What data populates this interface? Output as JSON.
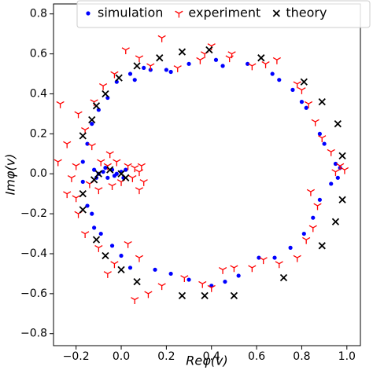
{
  "chart_data": {
    "type": "scatter",
    "x_label": "Reφ(v)",
    "y_label": "Imφ(v)",
    "xlim": [
      -0.3,
      1.06
    ],
    "ylim": [
      -0.86,
      0.85
    ],
    "xticks": [
      {
        "value": -0.2,
        "label": "−0.2"
      },
      {
        "value": 0,
        "label": "0.0"
      },
      0.2,
      0.4,
      0.6,
      0.8,
      {
        "value": 1,
        "label": "1.0"
      }
    ],
    "yticks": [
      {
        "value": -0.8,
        "label": "−0.8"
      },
      {
        "value": -0.6,
        "label": "−0.6"
      },
      {
        "value": -0.4,
        "label": "−0.4"
      },
      {
        "value": -0.2,
        "label": "−0.2"
      },
      {
        "value": 0,
        "label": "0.0"
      },
      0.2,
      0.4,
      0.6,
      0.8
    ],
    "legend": "upper right",
    "series": [
      {
        "name": "simulation",
        "color": "#0000ff",
        "marker": "o",
        "x": [
          -0.02,
          0.04,
          0.06,
          0.1,
          0.13,
          0.2,
          0.22,
          0.3,
          0.42,
          0.45,
          0.56,
          0.67,
          0.7,
          0.76,
          0.8,
          0.82,
          0.88,
          0.9,
          0.95,
          0.97,
          0.96,
          0.93,
          0.88,
          0.85,
          0.81,
          0.75,
          0.68,
          0.61,
          0.52,
          0.46,
          0.4,
          0.3,
          0.22,
          0.15,
          0.04,
          0.0,
          -0.04,
          -0.09,
          -0.12,
          -0.13,
          -0.15,
          -0.17,
          -0.17,
          -0.15,
          -0.13,
          -0.1,
          -0.06,
          -0.12,
          -0.1,
          -0.08,
          -0.06,
          -0.04,
          -0.02,
          0.0,
          0.01,
          -0.11,
          -0.07,
          -0.03,
          0.02
        ],
        "values": [
          0.46,
          0.5,
          0.47,
          0.53,
          0.52,
          0.52,
          0.51,
          0.55,
          0.57,
          0.54,
          0.55,
          0.5,
          0.47,
          0.42,
          0.36,
          0.33,
          0.2,
          0.15,
          0.05,
          0.03,
          -0.02,
          -0.05,
          -0.13,
          -0.22,
          -0.3,
          -0.37,
          -0.42,
          -0.42,
          -0.51,
          -0.54,
          -0.56,
          -0.53,
          -0.5,
          -0.48,
          -0.47,
          -0.41,
          -0.36,
          -0.3,
          -0.27,
          -0.2,
          -0.16,
          -0.04,
          0.06,
          0.15,
          0.25,
          0.32,
          0.38,
          0.02,
          0.0,
          0.01,
          -0.02,
          0.02,
          0.0,
          0.01,
          -0.02,
          -0.02,
          0.03,
          -0.01,
          0.02
        ]
      },
      {
        "name": "experiment",
        "color": "#ff0000",
        "marker": "1",
        "x": [
          0.18,
          0.02,
          0.08,
          0.13,
          0.25,
          0.35,
          0.37,
          0.4,
          0.48,
          0.49,
          0.58,
          0.64,
          0.69,
          0.78,
          0.8,
          0.83,
          0.86,
          0.89,
          0.93,
          0.97,
          0.99,
          0.95,
          0.84,
          0.87,
          0.85,
          0.82,
          0.78,
          0.7,
          0.63,
          0.58,
          0.5,
          0.45,
          0.4,
          0.36,
          0.28,
          0.18,
          0.12,
          0.06,
          0.08,
          0.03,
          -0.03,
          -0.06,
          -0.1,
          -0.16,
          -0.19,
          -0.2,
          -0.24,
          -0.22,
          -0.2,
          -0.28,
          -0.24,
          -0.27,
          -0.19,
          -0.16,
          -0.12,
          -0.08,
          -0.03,
          -0.13,
          -0.05,
          -0.02,
          0.03,
          0.06,
          0.08,
          0.05,
          0.0,
          -0.04,
          -0.1,
          -0.14,
          -0.09,
          0.1,
          0.08,
          -0.06,
          0.09
        ],
        "values": [
          0.68,
          0.62,
          0.58,
          0.54,
          0.53,
          0.57,
          0.6,
          0.64,
          0.58,
          0.6,
          0.54,
          0.55,
          0.57,
          0.45,
          0.42,
          0.35,
          0.26,
          0.18,
          0.11,
          0.04,
          0.02,
          0.01,
          -0.09,
          -0.16,
          -0.27,
          -0.33,
          -0.42,
          -0.45,
          -0.43,
          -0.47,
          -0.47,
          -0.48,
          -0.57,
          -0.55,
          -0.52,
          -0.56,
          -0.6,
          -0.63,
          -0.42,
          -0.35,
          -0.45,
          -0.5,
          -0.37,
          -0.3,
          -0.2,
          -0.12,
          -0.1,
          -0.02,
          0.04,
          0.06,
          0.15,
          0.35,
          0.3,
          0.22,
          0.36,
          0.44,
          0.5,
          0.14,
          0.1,
          0.06,
          0.04,
          0.03,
          0.01,
          -0.02,
          -0.04,
          -0.06,
          -0.08,
          -0.05,
          0.06,
          -0.04,
          -0.08,
          0.04,
          0.04
        ]
      },
      {
        "name": "theory",
        "color": "#000000",
        "marker": "x",
        "x": [
          0.07,
          0.17,
          0.27,
          0.39,
          0.62,
          0.81,
          0.89,
          0.96,
          0.98,
          0.98,
          0.95,
          0.89,
          0.72,
          0.5,
          0.37,
          0.27,
          0.07,
          0.0,
          -0.07,
          -0.11,
          -0.17,
          -0.17,
          -0.17,
          -0.13,
          -0.11,
          -0.07,
          -0.01,
          -0.1,
          -0.05,
          0.0,
          -0.12,
          0.02
        ],
        "values": [
          0.54,
          0.58,
          0.61,
          0.62,
          0.58,
          0.46,
          0.36,
          0.25,
          0.09,
          -0.13,
          -0.24,
          -0.36,
          -0.52,
          -0.61,
          -0.61,
          -0.61,
          -0.54,
          -0.48,
          -0.41,
          -0.33,
          -0.18,
          -0.1,
          0.19,
          0.27,
          0.34,
          0.4,
          0.48,
          0.0,
          0.02,
          0.0,
          -0.03,
          -0.02
        ]
      }
    ]
  }
}
